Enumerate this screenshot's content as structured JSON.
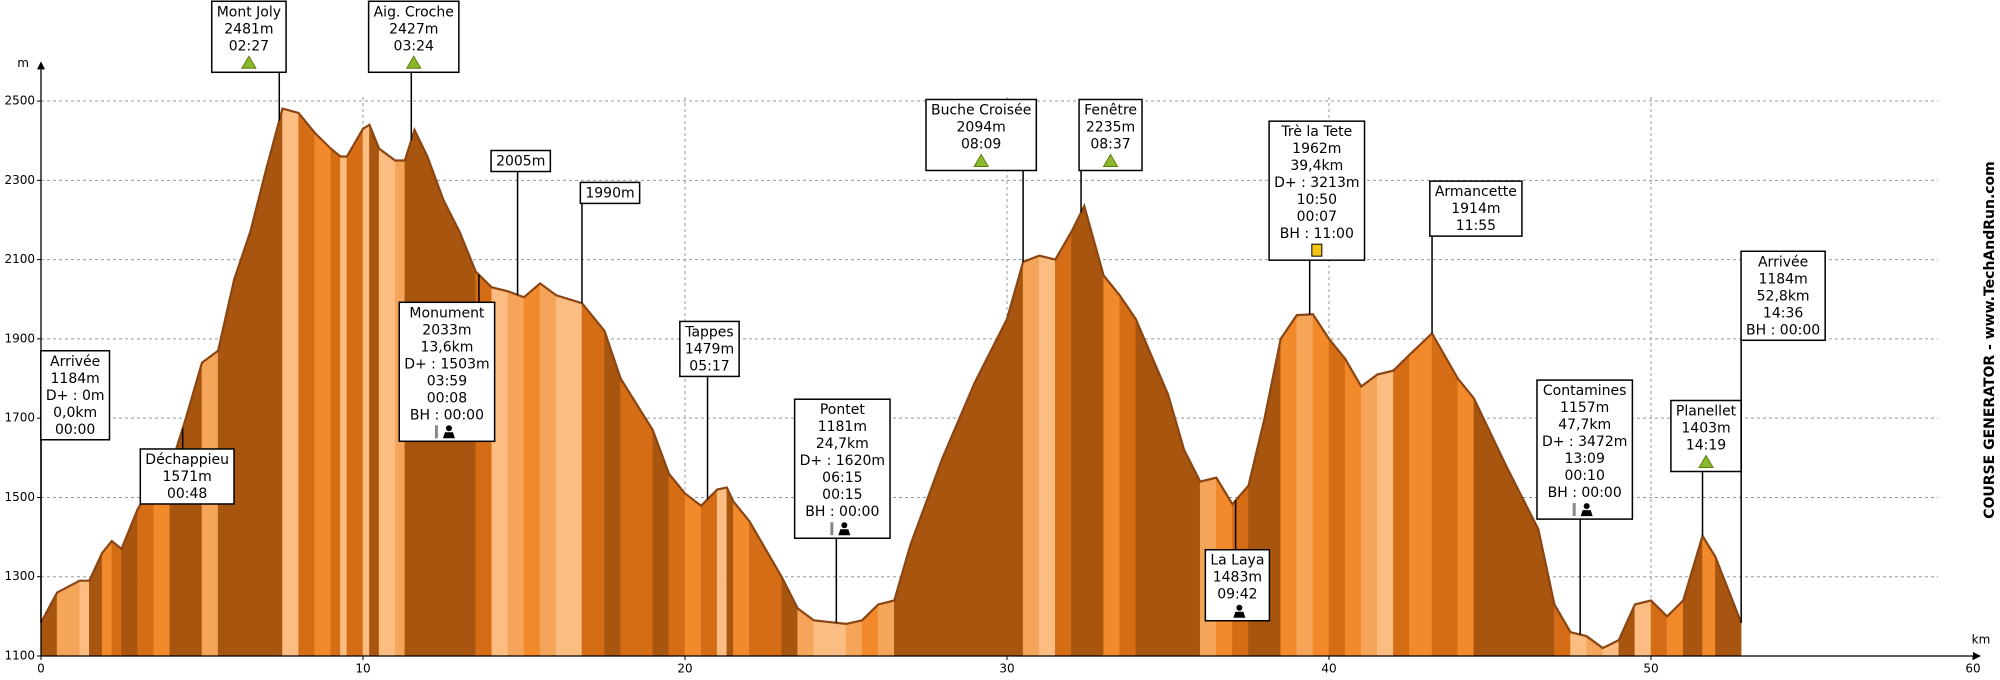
{
  "chart_data": {
    "type": "area",
    "xlabel": "km",
    "ylabel": "m",
    "credit": "COURSE GENERATOR - www.TechAndRun.com",
    "x": [
      0,
      0.5,
      1.2,
      1.5,
      1.9,
      2.2,
      2.5,
      3,
      3.5,
      4,
      4.5,
      5,
      5.5,
      6,
      6.5,
      7,
      7.5,
      8,
      8.5,
      9,
      9.3,
      9.5,
      10,
      10.2,
      10.5,
      11,
      11.3,
      11.6,
      12,
      12.5,
      13,
      13.5,
      14,
      14.5,
      15,
      15.5,
      16,
      16.8,
      17.5,
      18,
      19,
      19.5,
      20,
      20.5,
      21,
      21.3,
      21.5,
      22,
      23,
      23.5,
      24,
      25,
      25.5,
      26,
      26.5,
      27,
      28,
      29,
      30,
      30.5,
      31,
      31.5,
      32,
      32.4,
      33,
      33.5,
      34,
      35,
      35.5,
      36,
      36.5,
      37,
      37.5,
      38,
      38.5,
      39,
      39.5,
      40,
      40.5,
      41,
      41.5,
      42,
      42.5,
      43.2,
      44,
      44.5,
      45.5,
      46,
      46.5,
      47,
      47.5,
      48,
      48.5,
      49,
      49.5,
      50,
      50.5,
      51,
      51.6,
      52,
      52.8
    ],
    "values": [
      1184,
      1260,
      1290,
      1290,
      1360,
      1390,
      1370,
      1470,
      1540,
      1571,
      1700,
      1840,
      1870,
      2050,
      2170,
      2330,
      2481,
      2470,
      2420,
      2380,
      2360,
      2360,
      2430,
      2440,
      2380,
      2350,
      2350,
      2427,
      2360,
      2250,
      2170,
      2070,
      2030,
      2020,
      2005,
      2040,
      2010,
      1990,
      1920,
      1800,
      1670,
      1560,
      1510,
      1479,
      1520,
      1525,
      1490,
      1440,
      1300,
      1220,
      1190,
      1181,
      1190,
      1230,
      1240,
      1380,
      1600,
      1790,
      1950,
      2094,
      2110,
      2100,
      2170,
      2235,
      2060,
      2010,
      1950,
      1760,
      1620,
      1540,
      1550,
      1483,
      1530,
      1700,
      1900,
      1960,
      1962,
      1900,
      1850,
      1780,
      1810,
      1820,
      1860,
      1914,
      1800,
      1750,
      1580,
      1500,
      1420,
      1230,
      1160,
      1150,
      1120,
      1140,
      1230,
      1240,
      1200,
      1240,
      1403,
      1350,
      1184
    ],
    "color": "#8b4513",
    "xlim": [
      0,
      60
    ],
    "ylim": [
      1100,
      2600
    ],
    "xticks": [
      0,
      10,
      20,
      30,
      40,
      50,
      60
    ],
    "yticks": [
      1100,
      1300,
      1500,
      1700,
      1900,
      2100,
      2300,
      2500
    ],
    "grid": true,
    "annotations": [
      {
        "x": 0,
        "lines": [
          "Arrivée",
          "1184m",
          "D+ : 0m",
          "0,0km",
          "00:00"
        ]
      },
      {
        "x": 4.4,
        "lines": [
          "Déchappieu",
          "1571m",
          "00:48"
        ]
      },
      {
        "x": 7.4,
        "lines": [
          "Mont Joly",
          "2481m",
          "02:27"
        ]
      },
      {
        "x": 11.5,
        "lines": [
          "Aig. Croche",
          "2427m",
          "03:24"
        ]
      },
      {
        "x": 13.6,
        "lines": [
          "Monument",
          "2033m",
          "13,6km",
          "D+ : 1503m",
          "03:59",
          "00:08",
          "BH : 00:00"
        ]
      },
      {
        "x": 14.8,
        "lines": [
          "2005m"
        ]
      },
      {
        "x": 16.8,
        "lines": [
          "1990m"
        ]
      },
      {
        "x": 20.7,
        "lines": [
          "Tappes",
          "1479m",
          "05:17"
        ]
      },
      {
        "x": 24.7,
        "lines": [
          "Pontet",
          "1181m",
          "24,7km",
          "D+ : 1620m",
          "06:15",
          "00:15",
          "BH : 00:00"
        ]
      },
      {
        "x": 30.5,
        "lines": [
          "Buche Croisée",
          "2094m",
          "08:09"
        ]
      },
      {
        "x": 32.3,
        "lines": [
          "Fenêtre",
          "2235m",
          "08:37"
        ]
      },
      {
        "x": 37.1,
        "lines": [
          "La Laya",
          "1483m",
          "09:42"
        ]
      },
      {
        "x": 39.4,
        "lines": [
          "Trè la Tete",
          "1962m",
          "39,4km",
          "D+ : 3213m",
          "10:50",
          "00:07",
          "BH : 11:00"
        ]
      },
      {
        "x": 43.2,
        "lines": [
          "Armancette",
          "1914m",
          "11:55"
        ]
      },
      {
        "x": 47.8,
        "lines": [
          "Contamines",
          "1157m",
          "47,7km",
          "D+ : 3472m",
          "13:09",
          "00:10",
          "BH : 00:00"
        ]
      },
      {
        "x": 51.6,
        "lines": [
          "Planellet",
          "1403m",
          "14:19"
        ]
      },
      {
        "x": 52.8,
        "lines": [
          "Arrivée",
          "1184m",
          "52,8km",
          "14:36",
          "BH : 00:00"
        ]
      }
    ]
  }
}
